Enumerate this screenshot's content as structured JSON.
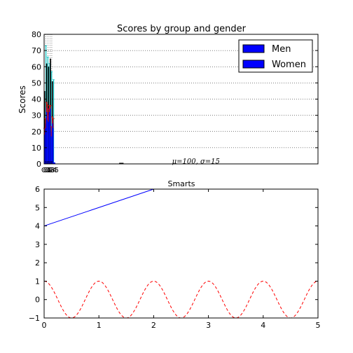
{
  "chart_data": [
    {
      "type": "bar",
      "title": "Scores by group and gender",
      "ylabel": "Scores",
      "xlabel": "",
      "ylim": [
        0,
        80
      ],
      "xlim": [
        0,
        5
      ],
      "yticks": [
        0,
        10,
        20,
        30,
        40,
        50,
        60,
        70,
        80
      ],
      "grid": true,
      "legend_position": "top-right",
      "bar_width": 0.035,
      "categories": [
        "G1",
        "G2",
        "G3",
        "G4",
        "G5"
      ],
      "x": [
        0,
        0.035,
        0.07,
        0.105,
        0.14
      ],
      "series": [
        {
          "name": "Men",
          "color": "#0000ff",
          "values": [
            20,
            35,
            30,
            35,
            27
          ],
          "errors": [
            2,
            3,
            4,
            1,
            2
          ]
        },
        {
          "name": "Women",
          "color": "#0000ff",
          "values": [
            25,
            32,
            34,
            20,
            25
          ],
          "errors": [
            3,
            5,
            2,
            3,
            3
          ]
        }
      ],
      "black_bars": [
        45,
        62,
        60,
        65,
        51
      ],
      "cyan_bars": [
        73,
        66,
        62,
        57,
        52
      ],
      "annotation": "μ=100, σ=15",
      "annotation_x": 2.9,
      "annotation_y": 1
    },
    {
      "type": "line",
      "title": "Smarts",
      "xlim": [
        0,
        5
      ],
      "ylim": [
        -1,
        6
      ],
      "xticks": [
        0,
        1,
        2,
        3,
        4,
        5
      ],
      "yticks": [
        -1,
        0,
        1,
        2,
        3,
        4,
        5,
        6
      ],
      "series": [
        {
          "color": "#0000ff",
          "style": "solid",
          "x": [
            0,
            2
          ],
          "y": [
            4,
            6
          ]
        },
        {
          "color": "#ff0000",
          "style": "dashed",
          "function": "cos(2*pi*x)",
          "x_range": [
            0,
            5
          ]
        }
      ]
    }
  ]
}
